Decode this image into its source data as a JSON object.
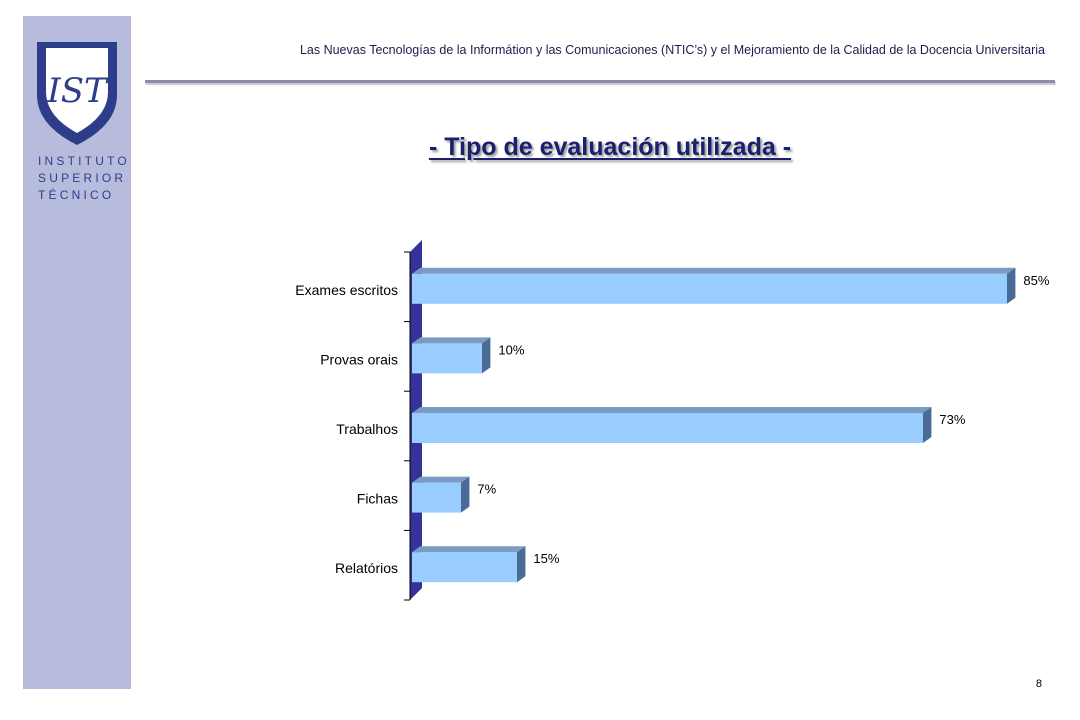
{
  "header": {
    "text": "Las Nuevas Tecnologías de la Informátion y las Comunicaciones (NTIC’s) y el Mejoramiento de la Calidad de la Docencia  Universitaria"
  },
  "logo": {
    "mark": "IST",
    "lines": [
      "INSTITUTO",
      "SUPERIOR",
      "TÉCNICO"
    ]
  },
  "slide": {
    "title": "- Tipo de evaluación utilizada -",
    "page_number": "8"
  },
  "colors": {
    "sidebar": "#b8bcdc",
    "bar_front": "#99ccff",
    "bar_top": "#7a9cc4",
    "bar_side": "#4a6a98",
    "wall": "#333399",
    "title": "#1a1f6e"
  },
  "chart_data": {
    "type": "bar",
    "orientation": "horizontal",
    "title": "",
    "xlabel": "",
    "ylabel": "",
    "categories": [
      "Exames escritos",
      "Provas orais",
      "Trabalhos",
      "Fichas",
      "Relatórios"
    ],
    "values": [
      85,
      10,
      73,
      7,
      15
    ],
    "value_labels": [
      "85%",
      "10%",
      "73%",
      "7%",
      "15%"
    ],
    "xlim": [
      0,
      100
    ],
    "grid": false,
    "legend": "none",
    "style": "3d"
  }
}
